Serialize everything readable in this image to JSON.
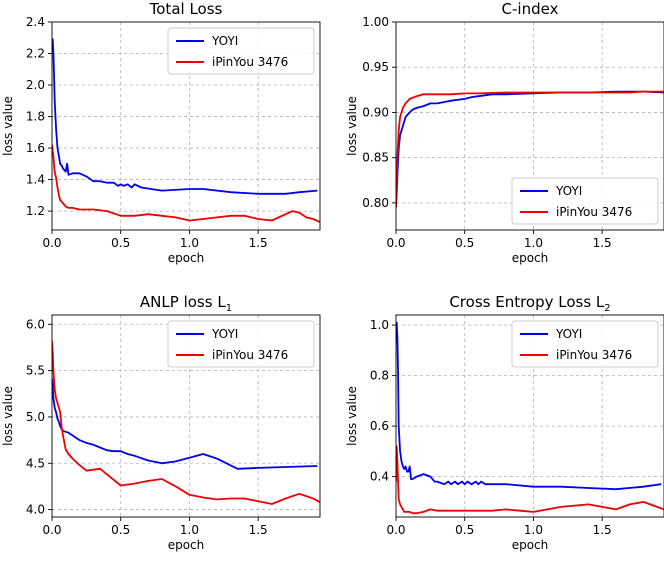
{
  "chart_data": [
    {
      "type": "line",
      "title": "Total Loss",
      "title_sub": "",
      "xlabel": "epoch",
      "ylabel": "loss value",
      "xlim": [
        0,
        1.95
      ],
      "ylim": [
        1.08,
        2.4
      ],
      "xticks": [
        0.0,
        0.5,
        1.0,
        1.5
      ],
      "xtick_labels": [
        "0.0",
        "0.5",
        "1.0",
        "1.5"
      ],
      "yticks": [
        1.2,
        1.4,
        1.6,
        1.8,
        2.0,
        2.2,
        2.4
      ],
      "ytick_labels": [
        "1.2",
        "1.4",
        "1.6",
        "1.8",
        "2.0",
        "2.2",
        "2.4"
      ],
      "grid": true,
      "legend_position": "top-right",
      "series": [
        {
          "name": "YOYI",
          "color": "#0000ee",
          "x": [
            0,
            0.005,
            0.01,
            0.015,
            0.02,
            0.03,
            0.04,
            0.05,
            0.06,
            0.07,
            0.08,
            0.09,
            0.1,
            0.11,
            0.12,
            0.15,
            0.2,
            0.25,
            0.3,
            0.35,
            0.4,
            0.45,
            0.48,
            0.5,
            0.52,
            0.55,
            0.58,
            0.6,
            0.65,
            0.8,
            1.0,
            1.1,
            1.3,
            1.5,
            1.6,
            1.7,
            1.8,
            1.93
          ],
          "y": [
            2.28,
            2.29,
            2.2,
            2.05,
            1.9,
            1.72,
            1.6,
            1.55,
            1.5,
            1.49,
            1.47,
            1.46,
            1.45,
            1.5,
            1.43,
            1.44,
            1.44,
            1.42,
            1.39,
            1.39,
            1.38,
            1.38,
            1.36,
            1.37,
            1.36,
            1.37,
            1.35,
            1.37,
            1.35,
            1.33,
            1.34,
            1.34,
            1.32,
            1.31,
            1.31,
            1.31,
            1.32,
            1.33
          ]
        },
        {
          "name": "iPinYou 3476",
          "color": "#ee0000",
          "x": [
            0,
            0.005,
            0.01,
            0.015,
            0.02,
            0.03,
            0.04,
            0.05,
            0.06,
            0.08,
            0.1,
            0.12,
            0.15,
            0.2,
            0.25,
            0.3,
            0.4,
            0.5,
            0.6,
            0.7,
            0.8,
            0.9,
            1.0,
            1.1,
            1.2,
            1.3,
            1.4,
            1.5,
            1.6,
            1.7,
            1.75,
            1.8,
            1.85,
            1.9,
            1.95
          ],
          "y": [
            1.62,
            1.58,
            1.55,
            1.49,
            1.45,
            1.41,
            1.35,
            1.3,
            1.27,
            1.25,
            1.23,
            1.22,
            1.22,
            1.21,
            1.21,
            1.21,
            1.2,
            1.17,
            1.17,
            1.18,
            1.17,
            1.16,
            1.14,
            1.15,
            1.16,
            1.17,
            1.17,
            1.15,
            1.14,
            1.18,
            1.2,
            1.19,
            1.16,
            1.15,
            1.13
          ]
        }
      ]
    },
    {
      "type": "line",
      "title": "C-index",
      "title_sub": "",
      "xlabel": "epoch",
      "ylabel": "loss value",
      "xlim": [
        0,
        1.95
      ],
      "ylim": [
        0.77,
        1.0
      ],
      "xticks": [
        0.0,
        0.5,
        1.0,
        1.5
      ],
      "xtick_labels": [
        "0.0",
        "0.5",
        "1.0",
        "1.5"
      ],
      "yticks": [
        0.8,
        0.85,
        0.9,
        0.95,
        1.0
      ],
      "ytick_labels": [
        "0.80",
        "0.85",
        "0.90",
        "0.95",
        "1.00"
      ],
      "grid": true,
      "legend_position": "bottom-right",
      "series": [
        {
          "name": "YOYI",
          "color": "#0000ee",
          "x": [
            0,
            0.005,
            0.01,
            0.02,
            0.03,
            0.05,
            0.07,
            0.1,
            0.12,
            0.15,
            0.2,
            0.25,
            0.3,
            0.4,
            0.5,
            0.55,
            0.6,
            0.7,
            0.8,
            1.0,
            1.2,
            1.4,
            1.6,
            1.8,
            1.95
          ],
          "y": [
            0.795,
            0.81,
            0.83,
            0.86,
            0.875,
            0.885,
            0.895,
            0.9,
            0.903,
            0.905,
            0.907,
            0.91,
            0.91,
            0.913,
            0.915,
            0.917,
            0.918,
            0.92,
            0.92,
            0.921,
            0.922,
            0.922,
            0.923,
            0.923,
            0.922
          ]
        },
        {
          "name": "iPinYou 3476",
          "color": "#ee0000",
          "x": [
            0,
            0.005,
            0.01,
            0.02,
            0.03,
            0.05,
            0.07,
            0.1,
            0.15,
            0.2,
            0.3,
            0.4,
            0.5,
            0.6,
            0.8,
            1.0,
            1.2,
            1.4,
            1.6,
            1.7,
            1.8,
            1.95
          ],
          "y": [
            0.795,
            0.82,
            0.85,
            0.88,
            0.895,
            0.905,
            0.91,
            0.915,
            0.918,
            0.92,
            0.92,
            0.92,
            0.921,
            0.921,
            0.922,
            0.922,
            0.922,
            0.922,
            0.922,
            0.922,
            0.923,
            0.923
          ]
        }
      ]
    },
    {
      "type": "line",
      "title": "ANLP loss L",
      "title_sub": "1",
      "xlabel": "epoch",
      "ylabel": "loss value",
      "xlim": [
        0,
        1.95
      ],
      "ylim": [
        3.92,
        6.1
      ],
      "xticks": [
        0.0,
        0.5,
        1.0,
        1.5
      ],
      "xtick_labels": [
        "0.0",
        "0.5",
        "1.0",
        "1.5"
      ],
      "yticks": [
        4.0,
        4.5,
        5.0,
        5.5,
        6.0
      ],
      "ytick_labels": [
        "4.0",
        "4.5",
        "5.0",
        "5.5",
        "6.0"
      ],
      "grid": true,
      "legend_position": "top-right",
      "series": [
        {
          "name": "YOYI",
          "color": "#0000ee",
          "x": [
            0,
            0.005,
            0.01,
            0.02,
            0.03,
            0.04,
            0.05,
            0.06,
            0.07,
            0.08,
            0.1,
            0.12,
            0.15,
            0.2,
            0.25,
            0.3,
            0.35,
            0.4,
            0.45,
            0.5,
            0.55,
            0.6,
            0.7,
            0.8,
            0.9,
            1.0,
            1.1,
            1.2,
            1.35,
            1.5,
            1.7,
            1.93
          ],
          "y": [
            5.41,
            5.35,
            5.2,
            5.1,
            5.05,
            4.98,
            4.95,
            4.9,
            4.87,
            4.85,
            4.84,
            4.83,
            4.8,
            4.75,
            4.72,
            4.7,
            4.67,
            4.64,
            4.63,
            4.63,
            4.6,
            4.58,
            4.53,
            4.5,
            4.52,
            4.56,
            4.6,
            4.55,
            4.44,
            4.45,
            4.46,
            4.47
          ]
        },
        {
          "name": "iPinYou 3476",
          "color": "#ee0000",
          "x": [
            0,
            0.005,
            0.01,
            0.02,
            0.03,
            0.04,
            0.05,
            0.06,
            0.07,
            0.08,
            0.1,
            0.12,
            0.15,
            0.2,
            0.25,
            0.3,
            0.35,
            0.4,
            0.5,
            0.6,
            0.7,
            0.8,
            0.9,
            1.0,
            1.1,
            1.2,
            1.3,
            1.4,
            1.5,
            1.6,
            1.7,
            1.8,
            1.9,
            1.95
          ],
          "y": [
            5.82,
            5.7,
            5.5,
            5.3,
            5.2,
            5.15,
            5.1,
            5.05,
            4.9,
            4.8,
            4.65,
            4.6,
            4.55,
            4.48,
            4.42,
            4.43,
            4.44,
            4.38,
            4.26,
            4.28,
            4.31,
            4.33,
            4.25,
            4.16,
            4.13,
            4.11,
            4.12,
            4.12,
            4.09,
            4.06,
            4.12,
            4.17,
            4.12,
            4.08
          ]
        }
      ]
    },
    {
      "type": "line",
      "title": "Cross Entropy Loss L",
      "title_sub": "2",
      "xlabel": "epoch",
      "ylabel": "loss value",
      "xlim": [
        0,
        1.95
      ],
      "ylim": [
        0.24,
        1.04
      ],
      "xticks": [
        0.0,
        0.5,
        1.0,
        1.5
      ],
      "xtick_labels": [
        "0.0",
        "0.5",
        "1.0",
        "1.5"
      ],
      "yticks": [
        0.4,
        0.6,
        0.8,
        1.0
      ],
      "ytick_labels": [
        "0.4",
        "0.6",
        "0.8",
        "1.0"
      ],
      "grid": true,
      "legend_position": "top-right",
      "series": [
        {
          "name": "YOYI",
          "color": "#0000ee",
          "x": [
            0,
            0.005,
            0.01,
            0.015,
            0.02,
            0.03,
            0.04,
            0.05,
            0.06,
            0.07,
            0.08,
            0.09,
            0.1,
            0.11,
            0.12,
            0.15,
            0.2,
            0.25,
            0.28,
            0.3,
            0.35,
            0.38,
            0.4,
            0.43,
            0.45,
            0.48,
            0.5,
            0.52,
            0.55,
            0.58,
            0.6,
            0.62,
            0.65,
            0.7,
            0.8,
            1.0,
            1.2,
            1.4,
            1.6,
            1.8,
            1.93
          ],
          "y": [
            0.93,
            1.01,
            0.95,
            0.8,
            0.6,
            0.5,
            0.46,
            0.44,
            0.43,
            0.44,
            0.42,
            0.42,
            0.44,
            0.39,
            0.39,
            0.4,
            0.41,
            0.4,
            0.38,
            0.38,
            0.37,
            0.38,
            0.37,
            0.38,
            0.37,
            0.38,
            0.37,
            0.38,
            0.37,
            0.38,
            0.37,
            0.38,
            0.37,
            0.37,
            0.37,
            0.36,
            0.36,
            0.355,
            0.35,
            0.36,
            0.37
          ]
        },
        {
          "name": "iPinYou 3476",
          "color": "#ee0000",
          "x": [
            0,
            0.005,
            0.01,
            0.015,
            0.02,
            0.03,
            0.04,
            0.05,
            0.06,
            0.08,
            0.1,
            0.12,
            0.15,
            0.2,
            0.25,
            0.3,
            0.4,
            0.5,
            0.6,
            0.7,
            0.8,
            0.9,
            1.0,
            1.1,
            1.2,
            1.3,
            1.4,
            1.5,
            1.6,
            1.7,
            1.8,
            1.9,
            1.95
          ],
          "y": [
            0.38,
            0.52,
            0.46,
            0.38,
            0.31,
            0.29,
            0.28,
            0.27,
            0.26,
            0.26,
            0.26,
            0.255,
            0.255,
            0.26,
            0.27,
            0.265,
            0.265,
            0.265,
            0.265,
            0.265,
            0.27,
            0.265,
            0.26,
            0.27,
            0.28,
            0.285,
            0.29,
            0.28,
            0.27,
            0.29,
            0.3,
            0.28,
            0.27
          ]
        }
      ]
    }
  ]
}
